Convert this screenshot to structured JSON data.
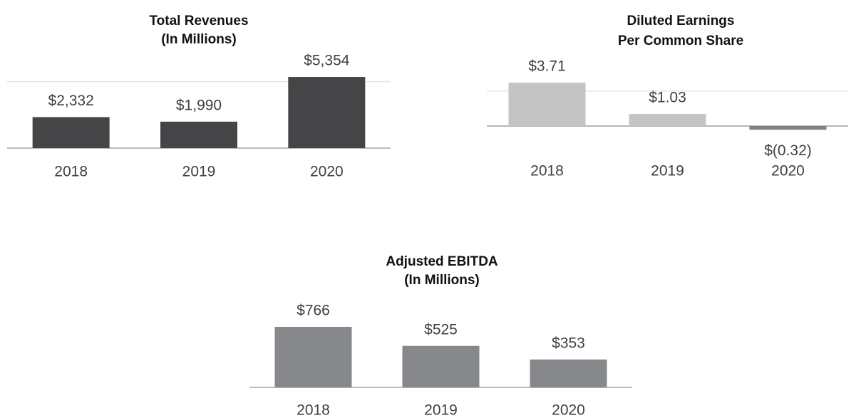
{
  "chart_data": [
    {
      "type": "bar",
      "title": [
        "Total Revenues",
        "(In Millions)"
      ],
      "categories": [
        "2018",
        "2019",
        "2020"
      ],
      "values": [
        2332,
        1990,
        5354
      ],
      "value_labels": [
        "$2,332",
        "$1,990",
        "$5,354"
      ],
      "color": "#454547",
      "ylim": [
        0,
        6000
      ],
      "yticks": [
        5000
      ],
      "grid": true
    },
    {
      "type": "bar",
      "title": [
        "Diluted Earnings",
        "Per Common Share"
      ],
      "categories": [
        "2018",
        "2019",
        "2020"
      ],
      "values": [
        3.71,
        1.03,
        -0.32
      ],
      "value_labels": [
        "$3.71",
        "$1.03",
        "$(0.32)"
      ],
      "colors": [
        "#c4c4c4",
        "#c4c4c4",
        "#7f8083"
      ],
      "ylim": [
        -1,
        4
      ],
      "yticks": [
        0,
        3
      ],
      "grid": true
    },
    {
      "type": "bar",
      "title": [
        "Adjusted EBITDA",
        "(In Millions)"
      ],
      "categories": [
        "2018",
        "2019",
        "2020"
      ],
      "values": [
        766,
        525,
        353
      ],
      "value_labels": [
        "$766",
        "$525",
        "$353"
      ],
      "color": "#87888b",
      "ylim": [
        0,
        1000
      ],
      "yticks": [],
      "grid": false
    }
  ]
}
